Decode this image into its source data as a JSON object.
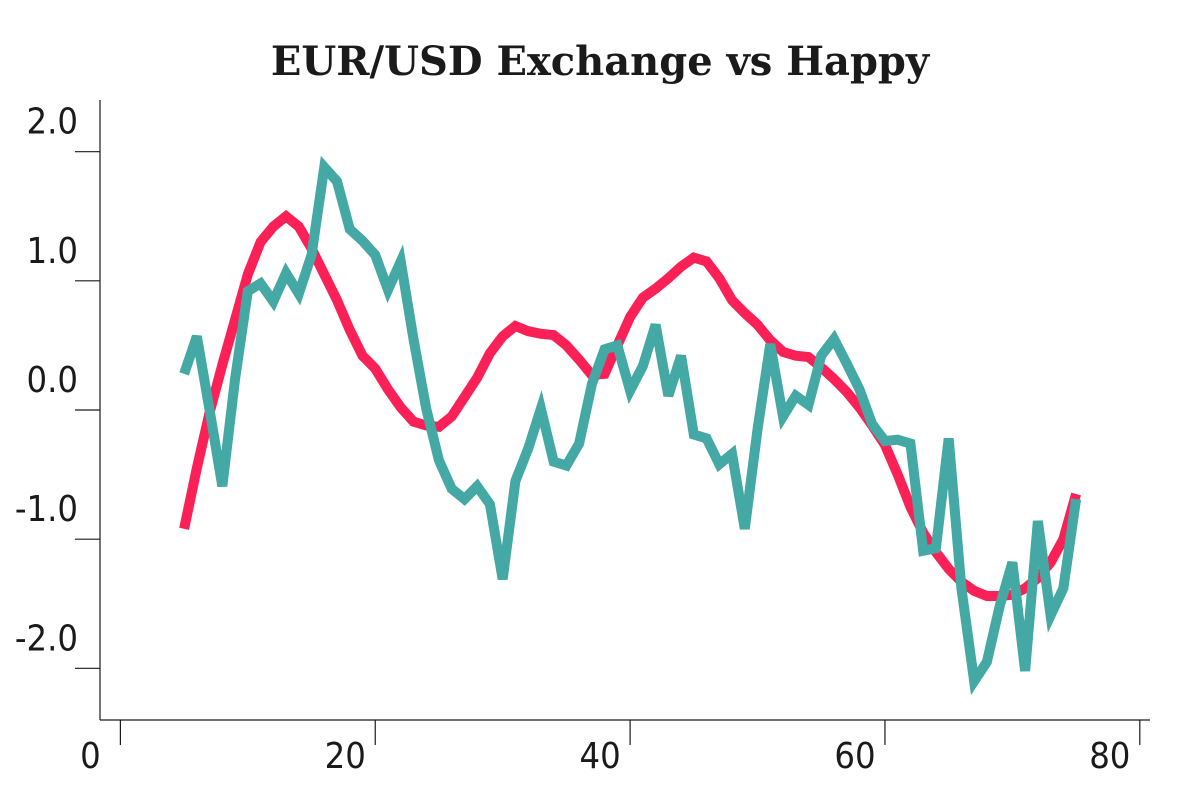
{
  "chart_data": {
    "type": "line",
    "title": "EUR/USD Exchange vs Happy",
    "x": [
      5,
      6,
      7,
      8,
      9,
      10,
      11,
      12,
      13,
      14,
      15,
      16,
      17,
      18,
      19,
      20,
      21,
      22,
      23,
      24,
      25,
      26,
      27,
      28,
      29,
      30,
      31,
      32,
      33,
      34,
      35,
      36,
      37,
      38,
      39,
      40,
      41,
      42,
      43,
      44,
      45,
      46,
      47,
      48,
      49,
      50,
      51,
      52,
      53,
      54,
      55,
      56,
      57,
      58,
      59,
      60,
      61,
      62,
      63,
      64,
      65,
      66,
      67,
      68,
      69,
      70,
      71,
      72,
      73,
      74,
      75
    ],
    "series": [
      {
        "color": "#fb2156",
        "values": [
          -0.92,
          -0.45,
          -0.02,
          0.35,
          0.7,
          1.05,
          1.3,
          1.42,
          1.5,
          1.42,
          1.25,
          1.05,
          0.85,
          0.62,
          0.42,
          0.32,
          0.16,
          0.02,
          -0.09,
          -0.12,
          -0.13,
          -0.05,
          0.1,
          0.25,
          0.44,
          0.57,
          0.65,
          0.61,
          0.59,
          0.58,
          0.5,
          0.39,
          0.27,
          0.28,
          0.5,
          0.72,
          0.87,
          0.94,
          1.02,
          1.11,
          1.18,
          1.15,
          1.02,
          0.85,
          0.75,
          0.66,
          0.54,
          0.45,
          0.42,
          0.41,
          0.33,
          0.24,
          0.14,
          0.02,
          -0.12,
          -0.27,
          -0.5,
          -0.75,
          -0.95,
          -1.1,
          -1.23,
          -1.33,
          -1.4,
          -1.44,
          -1.44,
          -1.43,
          -1.38,
          -1.3,
          -1.18,
          -1.0,
          -0.65
        ]
      },
      {
        "color": "#44a8a4",
        "values": [
          0.28,
          0.57,
          0.0,
          -0.59,
          0.24,
          0.92,
          0.98,
          0.84,
          1.06,
          0.9,
          1.2,
          1.88,
          1.77,
          1.4,
          1.31,
          1.2,
          0.93,
          1.15,
          0.55,
          0.01,
          -0.39,
          -0.61,
          -0.69,
          -0.59,
          -0.73,
          -1.31,
          -0.55,
          -0.3,
          0.01,
          -0.4,
          -0.43,
          -0.26,
          0.2,
          0.47,
          0.5,
          0.15,
          0.34,
          0.66,
          0.11,
          0.42,
          -0.19,
          -0.22,
          -0.42,
          -0.34,
          -0.92,
          -0.15,
          0.51,
          -0.05,
          0.11,
          0.04,
          0.42,
          0.55,
          0.36,
          0.16,
          -0.11,
          -0.24,
          -0.23,
          -0.26,
          -1.09,
          -1.07,
          -0.22,
          -1.38,
          -2.1,
          -1.95,
          -1.52,
          -1.18,
          -2.02,
          -0.86,
          -1.59,
          -1.38,
          -0.69
        ]
      }
    ],
    "xlim": [
      -1.6,
      80.8
    ],
    "ylim": [
      -2.4,
      2.4
    ],
    "xticks": [
      0,
      20,
      40,
      60,
      80
    ],
    "yticks": [
      {
        "value": -2,
        "label": "-2.0"
      },
      {
        "value": -1,
        "label": "-1.0"
      },
      {
        "value": 0,
        "label": "0.0"
      },
      {
        "value": 1,
        "label": "1.0"
      },
      {
        "value": 2,
        "label": "2.0"
      }
    ]
  }
}
